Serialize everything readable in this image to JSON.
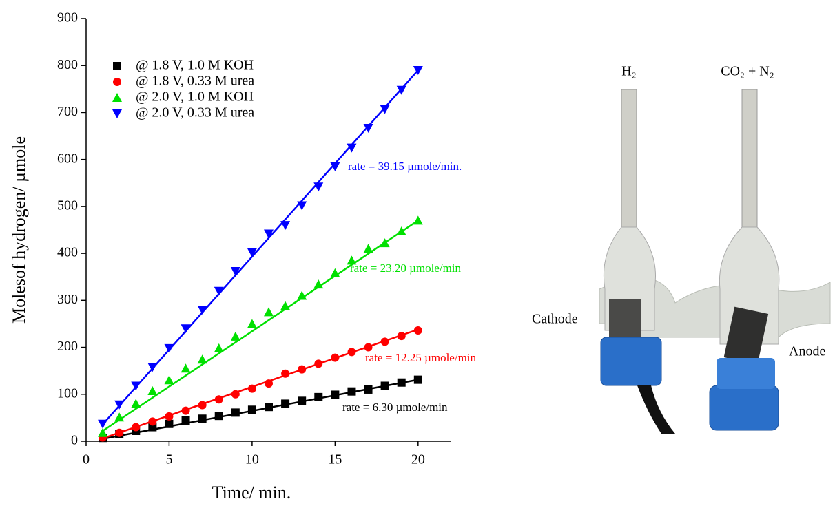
{
  "chart_data": {
    "type": "scatter",
    "x_label": "Time/ min.",
    "y_label": "Molesof hydrogen/ µmole",
    "xlim": [
      0,
      22
    ],
    "xticks": [
      0,
      5,
      10,
      15,
      20
    ],
    "ylim": [
      0,
      900
    ],
    "yticks": [
      0,
      100,
      200,
      300,
      400,
      500,
      600,
      700,
      800,
      900
    ],
    "x": [
      1,
      2,
      3,
      4,
      5,
      6,
      7,
      8,
      9,
      10,
      11,
      12,
      13,
      14,
      15,
      16,
      17,
      18,
      19,
      20
    ],
    "fit_x": [
      1,
      20
    ],
    "series": [
      {
        "name": "@ 1.8 V, 1.0 M KOH",
        "color": "#000000",
        "marker": "square",
        "values": [
          7,
          15,
          22,
          30,
          37,
          44,
          48,
          54,
          61,
          67,
          73,
          80,
          86,
          94,
          99,
          106,
          110,
          118,
          125,
          131
        ],
        "fit": [
          5,
          131
        ]
      },
      {
        "name": "@ 1.8 V, 0.33 M urea",
        "color": "#ff0000",
        "marker": "circle",
        "values": [
          8,
          18,
          30,
          42,
          53,
          65,
          77,
          89,
          100,
          112,
          123,
          144,
          153,
          165,
          178,
          190,
          200,
          212,
          224,
          236
        ],
        "fit": [
          6,
          238
        ]
      },
      {
        "name": "@ 2.0 V, 1.0 M KOH",
        "color": "#00e000",
        "marker": "triangle-up",
        "values": [
          18,
          51,
          80,
          107,
          130,
          155,
          174,
          198,
          223,
          250,
          275,
          288,
          310,
          334,
          358,
          385,
          410,
          422,
          447,
          470
        ],
        "fit": [
          22,
          470
        ]
      },
      {
        "name": "@ 2.0 V, 0.33 M urea",
        "color": "#0000ff",
        "marker": "triangle-down",
        "values": [
          37,
          78,
          118,
          158,
          198,
          240,
          280,
          320,
          362,
          402,
          442,
          460,
          502,
          542,
          585,
          625,
          667,
          707,
          748,
          790
        ],
        "fit": [
          36,
          790
        ]
      }
    ],
    "annotations": [
      {
        "text": "rate = 6.30 µmole/min",
        "color": "#000000"
      },
      {
        "text": "rate = 12.25 µmole/min",
        "color": "#ff0000"
      },
      {
        "text": "rate = 23.20 µmole/min",
        "color": "#00e000"
      },
      {
        "text": "rate = 39.15 µmole/min.",
        "color": "#0000ff"
      }
    ]
  },
  "photo": {
    "labels": [
      "H₂",
      "CO₂ + N₂",
      "Cathode",
      "Anode"
    ]
  }
}
